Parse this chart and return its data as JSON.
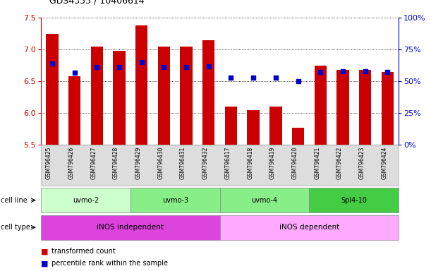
{
  "title": "GDS4355 / 10406614",
  "samples": [
    "GSM796425",
    "GSM796426",
    "GSM796427",
    "GSM796428",
    "GSM796429",
    "GSM796430",
    "GSM796431",
    "GSM796432",
    "GSM796417",
    "GSM796418",
    "GSM796419",
    "GSM796420",
    "GSM796421",
    "GSM796422",
    "GSM796423",
    "GSM796424"
  ],
  "bar_values": [
    7.25,
    6.58,
    7.05,
    6.98,
    7.38,
    7.05,
    7.04,
    7.15,
    6.1,
    6.05,
    6.1,
    5.77,
    6.75,
    6.68,
    6.68,
    6.65
  ],
  "blue_values": [
    6.78,
    6.63,
    6.72,
    6.72,
    6.8,
    6.72,
    6.72,
    6.73,
    6.56,
    6.56,
    6.56,
    6.5,
    6.65,
    6.66,
    6.66,
    6.65
  ],
  "ylim_left": [
    5.5,
    7.5
  ],
  "ylim_right": [
    0,
    100
  ],
  "yticks_left": [
    5.5,
    6.0,
    6.5,
    7.0,
    7.5
  ],
  "yticks_right": [
    0,
    25,
    50,
    75,
    100
  ],
  "ytick_labels_right": [
    "0%",
    "25%",
    "50%",
    "75%",
    "100%"
  ],
  "bar_color": "#cc0000",
  "blue_color": "#0000cc",
  "bar_width": 0.55,
  "cell_line_groups": [
    {
      "label": "uvmo-2",
      "start": 0,
      "end": 4,
      "color": "#ccffcc"
    },
    {
      "label": "uvmo-3",
      "start": 4,
      "end": 8,
      "color": "#88ee88"
    },
    {
      "label": "uvmo-4",
      "start": 8,
      "end": 12,
      "color": "#88ee88"
    },
    {
      "label": "Spl4-10",
      "start": 12,
      "end": 16,
      "color": "#44cc44"
    }
  ],
  "cell_type_groups": [
    {
      "label": "iNOS independent",
      "start": 0,
      "end": 8,
      "color": "#dd44dd"
    },
    {
      "label": "iNOS dependent",
      "start": 8,
      "end": 16,
      "color": "#ffaaff"
    }
  ],
  "legend_red": "transformed count",
  "legend_blue": "percentile rank within the sample",
  "cell_line_label": "cell line",
  "cell_type_label": "cell type"
}
